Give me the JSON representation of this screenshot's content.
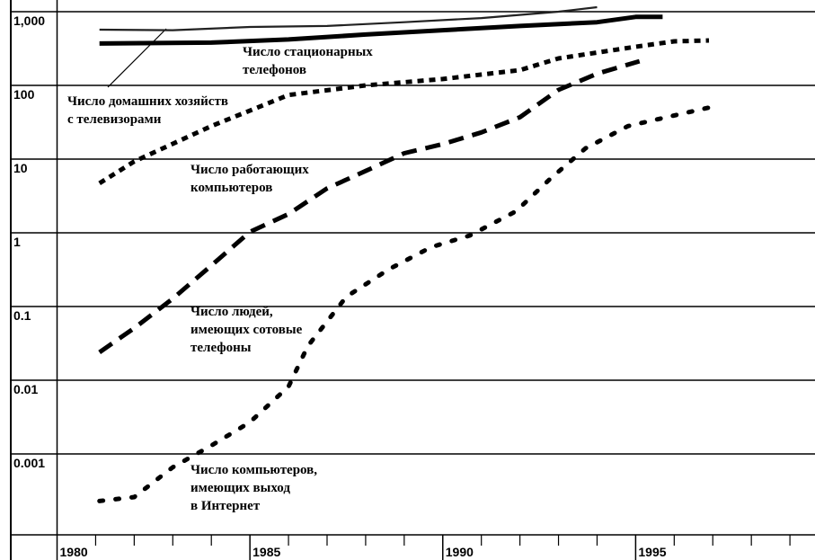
{
  "chart_data": {
    "type": "line",
    "ylog": true,
    "grid": true,
    "xlim": [
      1978.8,
      1999.65
    ],
    "ylim": [
      8e-05,
      1440
    ],
    "xticks": [
      1980,
      1985,
      1990,
      1995
    ],
    "xticks_minor": [
      1981,
      1982,
      1983,
      1984,
      1986,
      1987,
      1988,
      1989,
      1991,
      1992,
      1993,
      1994,
      1996,
      1997,
      1998,
      1999
    ],
    "yticks": [
      {
        "value": 1000,
        "label": "1,000"
      },
      100,
      10,
      1,
      0.1,
      0.01,
      0.001
    ],
    "series": [
      {
        "name": [
          "Число стационарных",
          "телефонов"
        ],
        "color": "#000",
        "style": "thick",
        "x": [
          1981.1,
          1984.0,
          1986.0,
          1988.0,
          1990.0,
          1992.0,
          1994.0,
          1995.0,
          1995.7
        ],
        "values": [
          370,
          380,
          420,
          490,
          560,
          640,
          720,
          850,
          850
        ]
      },
      {
        "name": [
          "Число  домашних хозяйств",
          "с телевизорами"
        ],
        "color": "#222",
        "style": "thin",
        "x": [
          1981.1,
          1983.0,
          1985.0,
          1987.0,
          1989.0,
          1991.0,
          1993.0,
          1994.0
        ],
        "values": [
          570,
          560,
          620,
          640,
          720,
          820,
          1000,
          1150
        ]
      },
      {
        "name": [
          "Число работающих",
          "компьютеров"
        ],
        "color": "#000",
        "style": "short",
        "x": [
          1981.1,
          1982.0,
          1984.0,
          1986.0,
          1988.0,
          1990.0,
          1992.0,
          1993.0,
          1995.0,
          1996.0,
          1996.9
        ],
        "values": [
          4.7,
          9.3,
          28,
          74,
          100,
          122,
          161,
          232,
          334,
          396,
          407
        ]
      },
      {
        "name": [
          "Число людей,",
          "имеющих сотовые",
          "телефоны"
        ],
        "color": "#000",
        "style": "long",
        "x": [
          1981.1,
          1982.0,
          1983.0,
          1984.0,
          1985.0,
          1986.0,
          1987.0,
          1988.0,
          1989.0,
          1990.0,
          1991.0,
          1992.0,
          1993.0,
          1994.0,
          1995.1
        ],
        "values": [
          0.024,
          0.051,
          0.128,
          0.36,
          1.03,
          1.8,
          4.0,
          6.9,
          12,
          16,
          23,
          37,
          87,
          144,
          213
        ]
      },
      {
        "name": [
          "Число компьютеров,",
          "имеющих выход",
          "в Интернет"
        ],
        "color": "#000",
        "style": "dot",
        "x": [
          1981.1,
          1982.0,
          1983.0,
          1984.0,
          1985.0,
          1986.0,
          1986.5,
          1987.5,
          1988.6,
          1989.7,
          1990.7,
          1991.9,
          1992.8,
          1993.7,
          1994.8,
          1995.8,
          1996.9
        ],
        "values": [
          0.00023,
          0.00026,
          0.00066,
          0.0013,
          0.0027,
          0.0082,
          0.029,
          0.136,
          0.32,
          0.64,
          0.92,
          1.96,
          5.5,
          14,
          28,
          37,
          50
        ]
      }
    ]
  }
}
